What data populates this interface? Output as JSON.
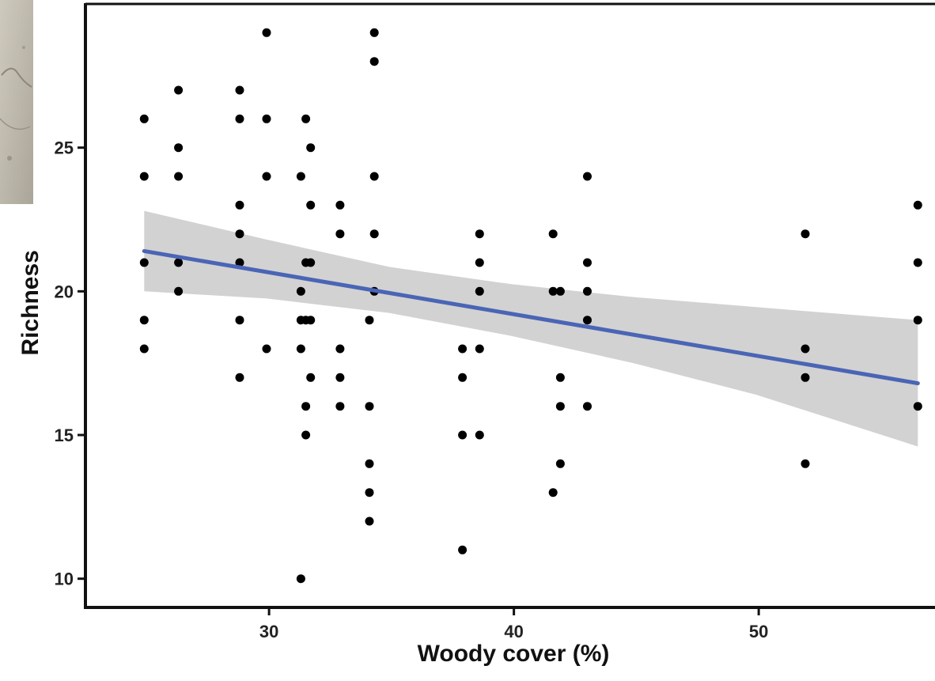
{
  "chart_data": {
    "type": "scatter",
    "title": "",
    "xlabel": "Woody cover (%)",
    "ylabel": "Richness",
    "xlim": [
      22.5,
      57.2
    ],
    "ylim": [
      9.0,
      30.0
    ],
    "xticks": [
      30,
      40,
      50
    ],
    "yticks": [
      10,
      15,
      20,
      25
    ],
    "grid": false,
    "legend": "none",
    "colors": {
      "points": "#000000",
      "fit_line": "#4a65b5",
      "ci_band": "#d2d2d2",
      "axes": "#111111",
      "text": "#222222"
    },
    "points": [
      [
        24.9,
        26
      ],
      [
        24.9,
        24
      ],
      [
        24.9,
        21
      ],
      [
        24.9,
        19
      ],
      [
        24.9,
        18
      ],
      [
        26.3,
        27
      ],
      [
        26.3,
        25
      ],
      [
        26.3,
        24
      ],
      [
        26.3,
        21
      ],
      [
        26.3,
        20
      ],
      [
        28.8,
        27
      ],
      [
        28.8,
        26
      ],
      [
        28.8,
        23
      ],
      [
        28.8,
        22
      ],
      [
        28.8,
        21
      ],
      [
        28.8,
        19
      ],
      [
        28.8,
        17
      ],
      [
        29.9,
        29
      ],
      [
        29.9,
        26
      ],
      [
        29.9,
        24
      ],
      [
        29.9,
        18
      ],
      [
        31.3,
        24
      ],
      [
        31.3,
        20
      ],
      [
        31.3,
        19
      ],
      [
        31.3,
        18
      ],
      [
        31.3,
        10
      ],
      [
        31.5,
        26
      ],
      [
        31.5,
        21
      ],
      [
        31.5,
        19
      ],
      [
        31.5,
        16
      ],
      [
        31.5,
        15
      ],
      [
        31.7,
        25
      ],
      [
        31.7,
        23
      ],
      [
        31.7,
        21
      ],
      [
        31.7,
        19
      ],
      [
        31.7,
        17
      ],
      [
        32.9,
        23
      ],
      [
        32.9,
        22
      ],
      [
        32.9,
        18
      ],
      [
        32.9,
        17
      ],
      [
        32.9,
        16
      ],
      [
        34.1,
        19
      ],
      [
        34.1,
        16
      ],
      [
        34.1,
        14
      ],
      [
        34.1,
        13
      ],
      [
        34.1,
        12
      ],
      [
        34.3,
        29
      ],
      [
        34.3,
        28
      ],
      [
        34.3,
        24
      ],
      [
        34.3,
        22
      ],
      [
        34.3,
        20
      ],
      [
        37.9,
        18
      ],
      [
        37.9,
        17
      ],
      [
        37.9,
        15
      ],
      [
        37.9,
        11
      ],
      [
        38.6,
        22
      ],
      [
        38.6,
        21
      ],
      [
        38.6,
        20
      ],
      [
        38.6,
        18
      ],
      [
        38.6,
        15
      ],
      [
        41.6,
        22
      ],
      [
        41.6,
        20
      ],
      [
        41.6,
        13
      ],
      [
        41.9,
        20
      ],
      [
        41.9,
        17
      ],
      [
        41.9,
        16
      ],
      [
        41.9,
        14
      ],
      [
        43.0,
        24
      ],
      [
        43.0,
        21
      ],
      [
        43.0,
        20
      ],
      [
        43.0,
        19
      ],
      [
        43.0,
        16
      ],
      [
        51.9,
        22
      ],
      [
        51.9,
        18
      ],
      [
        51.9,
        17
      ],
      [
        51.9,
        14
      ],
      [
        56.5,
        23
      ],
      [
        56.5,
        21
      ],
      [
        56.5,
        19
      ],
      [
        56.5,
        16
      ]
    ],
    "fit": {
      "x": [
        24.9,
        56.5
      ],
      "y": [
        21.4,
        16.8
      ]
    },
    "ci_band": {
      "x": [
        24.9,
        29.9,
        34.9,
        39.9,
        44.9,
        49.9,
        56.5
      ],
      "upper": [
        22.8,
        21.8,
        20.85,
        20.25,
        19.8,
        19.45,
        19.0
      ],
      "lower": [
        20.0,
        19.75,
        19.25,
        18.45,
        17.5,
        16.4,
        14.6
      ]
    }
  }
}
